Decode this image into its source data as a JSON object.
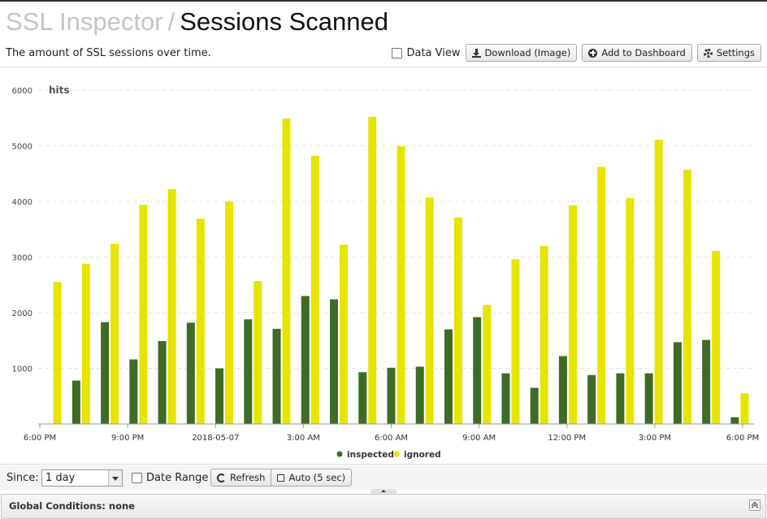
{
  "header": {
    "crumb": "SSL Inspector",
    "separator": "/",
    "title": "Sessions Scanned",
    "subtitle": "The amount of SSL sessions over time."
  },
  "toolbar": {
    "data_view_label": "Data View",
    "download_label": "Download (Image)",
    "dashboard_label": "Add to Dashboard",
    "settings_label": "Settings"
  },
  "chart_data": {
    "type": "bar",
    "ylabel": "hits",
    "ylim": [
      0,
      6000
    ],
    "yticks": [
      1000,
      2000,
      3000,
      4000,
      5000,
      6000
    ],
    "xtick_labels": [
      "6:00 PM",
      "9:00 PM",
      "2018-05-07",
      "3:00 AM",
      "6:00 AM",
      "9:00 AM",
      "12:00 PM",
      "3:00 PM",
      "6:00 PM"
    ],
    "series": [
      {
        "name": "inspected",
        "color": "#3e6b26",
        "values": [
          0,
          780,
          1830,
          1160,
          1490,
          1820,
          1000,
          1880,
          1710,
          2300,
          2240,
          930,
          1010,
          1030,
          1700,
          1920,
          910,
          650,
          1220,
          880,
          910,
          910,
          1470,
          1510,
          120
        ]
      },
      {
        "name": "ignored",
        "color": "#e5e500",
        "values": [
          2550,
          2880,
          3240,
          3940,
          4220,
          3690,
          4000,
          2570,
          5490,
          4820,
          3220,
          5520,
          4990,
          4070,
          3710,
          2140,
          2960,
          3200,
          3930,
          4620,
          4060,
          5110,
          4570,
          3110,
          550
        ]
      }
    ],
    "legend": "bottom-center",
    "grid": true
  },
  "footer": {
    "since_label": "Since:",
    "since_value": "1 day",
    "date_range_label": "Date Range",
    "refresh_label": "Refresh",
    "auto_label": "Auto (5 sec)",
    "global_conditions": "Global Conditions: none"
  },
  "icons": [
    "download-icon",
    "plus-circle-icon",
    "gear-icon",
    "refresh-icon",
    "checkbox-icon",
    "chevron-double-up-icon"
  ]
}
